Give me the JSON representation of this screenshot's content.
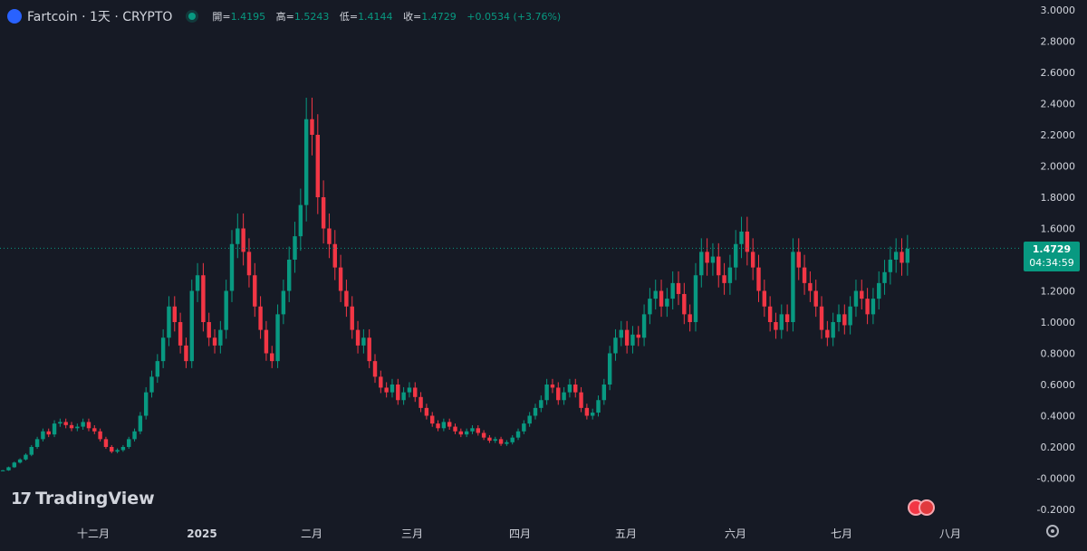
{
  "header": {
    "symbol_title": "Fartcoin · 1天 · CRYPTO",
    "open_label": "開=",
    "open_value": "1.4195",
    "high_label": "高=",
    "high_value": "1.5243",
    "low_label": "低=",
    "low_value": "1.4144",
    "close_label": "收=",
    "close_value": "1.4729",
    "change": "+0.0534 (+3.76%)"
  },
  "last_price": {
    "price": "1.4729",
    "countdown": "04:34:59"
  },
  "watermark": "TradingView",
  "colors": {
    "background": "#161a25",
    "up": "#089981",
    "down": "#f23645",
    "text": "#d1d4dc",
    "accent": "#2962ff"
  },
  "icons": [
    "settings-gear-icon",
    "us-flag-event-icon"
  ],
  "chart_data": {
    "type": "candlestick",
    "y_ticks": [
      "3.0000",
      "2.8000",
      "2.6000",
      "2.4000",
      "2.2000",
      "2.0000",
      "1.8000",
      "1.6000",
      "1.4000",
      "1.2000",
      "1.0000",
      "0.8000",
      "0.6000",
      "0.4000",
      "0.2000",
      "-0.0000",
      "-0.2000"
    ],
    "ylim": [
      -0.2,
      3.0
    ],
    "x_ticks": [
      "十二月",
      "2025",
      "二月",
      "三月",
      "四月",
      "五月",
      "六月",
      "七月",
      "八月"
    ],
    "grid": false,
    "close_series": [
      0.05,
      0.07,
      0.1,
      0.12,
      0.15,
      0.2,
      0.25,
      0.3,
      0.28,
      0.35,
      0.36,
      0.34,
      0.32,
      0.33,
      0.36,
      0.32,
      0.3,
      0.25,
      0.2,
      0.17,
      0.18,
      0.2,
      0.25,
      0.3,
      0.4,
      0.55,
      0.65,
      0.75,
      0.9,
      1.1,
      1.0,
      0.85,
      0.75,
      1.2,
      1.3,
      1.0,
      0.9,
      0.85,
      0.95,
      1.2,
      1.5,
      1.6,
      1.45,
      1.3,
      1.1,
      0.95,
      0.8,
      0.75,
      1.05,
      1.2,
      1.4,
      1.55,
      1.75,
      2.3,
      2.2,
      1.8,
      1.6,
      1.5,
      1.35,
      1.2,
      1.1,
      0.95,
      0.85,
      0.9,
      0.75,
      0.65,
      0.58,
      0.55,
      0.6,
      0.5,
      0.55,
      0.58,
      0.52,
      0.45,
      0.4,
      0.35,
      0.32,
      0.36,
      0.33,
      0.3,
      0.28,
      0.3,
      0.32,
      0.29,
      0.26,
      0.24,
      0.25,
      0.22,
      0.23,
      0.26,
      0.3,
      0.35,
      0.4,
      0.45,
      0.5,
      0.6,
      0.58,
      0.5,
      0.55,
      0.6,
      0.55,
      0.45,
      0.4,
      0.42,
      0.5,
      0.6,
      0.8,
      0.9,
      0.95,
      0.85,
      0.92,
      0.9,
      1.05,
      1.15,
      1.2,
      1.1,
      1.15,
      1.25,
      1.18,
      1.05,
      1.0,
      1.3,
      1.45,
      1.38,
      1.42,
      1.3,
      1.25,
      1.35,
      1.5,
      1.58,
      1.45,
      1.35,
      1.2,
      1.1,
      1.0,
      0.95,
      1.05,
      1.0,
      1.45,
      1.35,
      1.25,
      1.2,
      1.1,
      0.95,
      0.9,
      1.0,
      1.05,
      0.98,
      1.1,
      1.2,
      1.15,
      1.05,
      1.15,
      1.25,
      1.32,
      1.4,
      1.45,
      1.38,
      1.47
    ]
  }
}
